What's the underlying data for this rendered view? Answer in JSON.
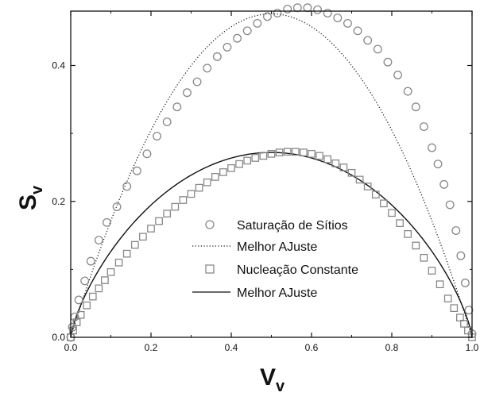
{
  "chart_data": {
    "type": "scatter",
    "xlabel": "V",
    "xlabel_sub": "v",
    "ylabel": "S",
    "ylabel_sub": "v",
    "xlim": [
      0.0,
      1.0
    ],
    "ylim": [
      0.0,
      0.48
    ],
    "x_ticks": [
      0.0,
      0.2,
      0.4,
      0.6,
      0.8,
      1.0
    ],
    "x_tick_labels": [
      "0.0",
      "0.2",
      "0.4",
      "0.6",
      "0.8",
      "1.0"
    ],
    "y_ticks": [
      0.0,
      0.2,
      0.4
    ],
    "y_tick_labels": [
      "0.0",
      "0.2",
      "0.4"
    ],
    "grid": false,
    "legend_position": "center-right",
    "series": [
      {
        "name": "Saturação de Sítios",
        "type": "scatter",
        "marker": "circle",
        "x": [
          0.0,
          0.004,
          0.01,
          0.02,
          0.035,
          0.05,
          0.07,
          0.09,
          0.115,
          0.14,
          0.165,
          0.19,
          0.215,
          0.24,
          0.265,
          0.29,
          0.315,
          0.34,
          0.365,
          0.39,
          0.415,
          0.44,
          0.465,
          0.49,
          0.515,
          0.54,
          0.565,
          0.59,
          0.615,
          0.64,
          0.665,
          0.69,
          0.715,
          0.74,
          0.765,
          0.79,
          0.815,
          0.84,
          0.86,
          0.88,
          0.9,
          0.915,
          0.93,
          0.945,
          0.96,
          0.972,
          0.983,
          0.992,
          1.0
        ],
        "y": [
          0.0,
          0.015,
          0.03,
          0.055,
          0.083,
          0.112,
          0.143,
          0.169,
          0.192,
          0.222,
          0.245,
          0.27,
          0.296,
          0.317,
          0.339,
          0.36,
          0.376,
          0.396,
          0.413,
          0.427,
          0.44,
          0.451,
          0.462,
          0.472,
          0.477,
          0.483,
          0.485,
          0.485,
          0.482,
          0.477,
          0.47,
          0.462,
          0.451,
          0.437,
          0.424,
          0.405,
          0.386,
          0.362,
          0.339,
          0.31,
          0.279,
          0.255,
          0.225,
          0.195,
          0.157,
          0.12,
          0.08,
          0.04,
          0.005
        ]
      },
      {
        "name": "Melhor AJuste",
        "type": "line",
        "style": "dotted",
        "fit": "parabola",
        "vertex_x": 0.5,
        "vertex_y": 0.476,
        "x_start": 0.0,
        "x_end": 1.0
      },
      {
        "name": "Nucleação Constante",
        "type": "scatter",
        "marker": "square",
        "x": [
          0.0,
          0.006,
          0.015,
          0.025,
          0.04,
          0.055,
          0.07,
          0.085,
          0.1,
          0.12,
          0.14,
          0.16,
          0.18,
          0.2,
          0.22,
          0.24,
          0.26,
          0.28,
          0.3,
          0.32,
          0.34,
          0.36,
          0.38,
          0.4,
          0.42,
          0.44,
          0.46,
          0.48,
          0.5,
          0.52,
          0.54,
          0.56,
          0.58,
          0.6,
          0.62,
          0.64,
          0.66,
          0.68,
          0.7,
          0.72,
          0.74,
          0.76,
          0.78,
          0.8,
          0.82,
          0.84,
          0.86,
          0.88,
          0.9,
          0.92,
          0.94,
          0.955,
          0.97,
          0.98,
          0.99,
          1.0
        ],
        "y": [
          0.0,
          0.01,
          0.022,
          0.033,
          0.047,
          0.06,
          0.072,
          0.084,
          0.096,
          0.11,
          0.123,
          0.136,
          0.148,
          0.16,
          0.171,
          0.182,
          0.192,
          0.202,
          0.211,
          0.22,
          0.228,
          0.236,
          0.243,
          0.249,
          0.255,
          0.26,
          0.264,
          0.267,
          0.27,
          0.272,
          0.273,
          0.273,
          0.272,
          0.27,
          0.267,
          0.262,
          0.256,
          0.25,
          0.242,
          0.232,
          0.222,
          0.21,
          0.197,
          0.183,
          0.168,
          0.152,
          0.135,
          0.117,
          0.098,
          0.078,
          0.057,
          0.043,
          0.029,
          0.02,
          0.01,
          0.0
        ]
      },
      {
        "name": "Melhor AJuste",
        "type": "line",
        "style": "solid",
        "fit": "x^0.75*(1-x)^0.75",
        "peak_y": 0.272,
        "x_start": 0.0,
        "x_end": 1.0
      }
    ],
    "legend": [
      {
        "label": "Saturação de Sítios",
        "symbol": "circle"
      },
      {
        "label": "Melhor AJuste",
        "symbol": "dotted-line"
      },
      {
        "label": "Nucleação Constante",
        "symbol": "square"
      },
      {
        "label": "Melhor AJuste",
        "symbol": "solid-line"
      }
    ],
    "colors": {
      "axis": "#111111",
      "markers": "#888888",
      "fit_lines": "#111111"
    }
  }
}
